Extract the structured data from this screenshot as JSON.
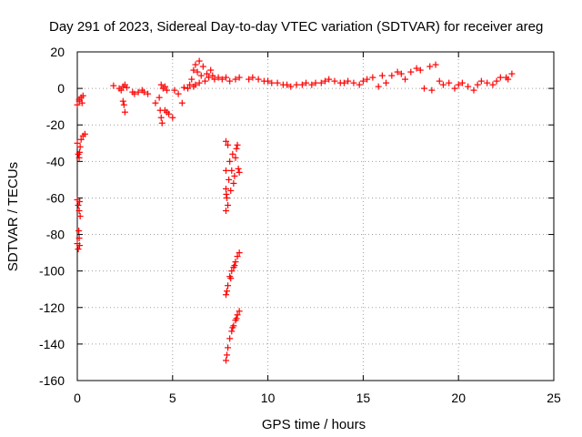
{
  "chart_data": {
    "type": "scatter",
    "title": "Day 291 of 2023, Sidereal Day-to-day VTEC variation (SDTVAR) for receiver areg",
    "xlabel": "GPS time / hours",
    "ylabel": "SDTVAR / TECUs",
    "xlim": [
      0,
      25
    ],
    "ylim": [
      -160,
      20
    ],
    "xticks": [
      "0",
      "5",
      "10",
      "15",
      "20",
      "25"
    ],
    "yticks": [
      "20",
      "0",
      "-20",
      "-40",
      "-60",
      "-80",
      "-100",
      "-120",
      "-140",
      "-160"
    ],
    "grid": true,
    "marker": "+",
    "color": "#ff0000",
    "series": [
      {
        "name": "SDTVAR",
        "points": [
          [
            0.0,
            -9
          ],
          [
            0.1,
            -7
          ],
          [
            0.2,
            -5
          ],
          [
            0.25,
            -8
          ],
          [
            0.3,
            -4
          ],
          [
            0.1,
            -6
          ],
          [
            0.0,
            -30
          ],
          [
            0.05,
            -36
          ],
          [
            0.1,
            -38
          ],
          [
            0.15,
            -32
          ],
          [
            0.2,
            -28
          ],
          [
            0.3,
            -26
          ],
          [
            0.4,
            -25
          ],
          [
            0.12,
            -35
          ],
          [
            0.0,
            -61
          ],
          [
            0.05,
            -64
          ],
          [
            0.1,
            -67
          ],
          [
            0.15,
            -70
          ],
          [
            0.12,
            -62
          ],
          [
            0.0,
            -85
          ],
          [
            0.05,
            -88
          ],
          [
            0.1,
            -82
          ],
          [
            0.08,
            -78
          ],
          [
            0.12,
            -86
          ],
          [
            1.9,
            1.5
          ],
          [
            2.2,
            0
          ],
          [
            2.3,
            -1
          ],
          [
            2.4,
            1
          ],
          [
            2.5,
            2
          ],
          [
            2.6,
            0.5
          ],
          [
            2.4,
            -7
          ],
          [
            2.45,
            -9
          ],
          [
            2.5,
            -13
          ],
          [
            2.9,
            -2
          ],
          [
            3.0,
            -3
          ],
          [
            3.2,
            -2
          ],
          [
            3.4,
            -1
          ],
          [
            3.5,
            -2
          ],
          [
            3.7,
            -3
          ],
          [
            4.1,
            -8
          ],
          [
            4.3,
            -5
          ],
          [
            4.35,
            -12
          ],
          [
            4.4,
            -16
          ],
          [
            4.45,
            -19
          ],
          [
            4.5,
            0
          ],
          [
            4.4,
            2
          ],
          [
            4.6,
            1
          ],
          [
            4.7,
            -1
          ],
          [
            4.6,
            -12
          ],
          [
            4.7,
            -13
          ],
          [
            4.8,
            -14
          ],
          [
            5.0,
            -16
          ],
          [
            5.1,
            -1
          ],
          [
            5.3,
            -3
          ],
          [
            5.5,
            -8
          ],
          [
            5.6,
            0.5
          ],
          [
            5.8,
            0
          ],
          [
            5.9,
            2
          ],
          [
            6.0,
            5
          ],
          [
            6.1,
            10
          ],
          [
            6.2,
            13
          ],
          [
            6.3,
            9
          ],
          [
            6.4,
            15
          ],
          [
            6.5,
            7
          ],
          [
            6.6,
            12
          ],
          [
            6.7,
            4
          ],
          [
            6.8,
            8
          ],
          [
            6.9,
            6
          ],
          [
            7.0,
            10
          ],
          [
            7.1,
            7
          ],
          [
            7.2,
            5
          ],
          [
            7.4,
            6
          ],
          [
            7.6,
            5
          ],
          [
            7.8,
            6
          ],
          [
            8.0,
            4
          ],
          [
            8.3,
            5
          ],
          [
            6.2,
            2
          ],
          [
            6.4,
            3
          ],
          [
            6.1,
            1
          ],
          [
            7.8,
            -29
          ],
          [
            7.9,
            -31
          ],
          [
            7.8,
            -45
          ],
          [
            7.8,
            -55
          ],
          [
            7.85,
            -60
          ],
          [
            7.9,
            -64
          ],
          [
            7.95,
            -50
          ],
          [
            8.0,
            -40
          ],
          [
            8.1,
            -45
          ],
          [
            8.2,
            -52
          ],
          [
            8.25,
            -48
          ],
          [
            8.3,
            -38
          ],
          [
            8.35,
            -33
          ],
          [
            8.4,
            -31
          ],
          [
            8.45,
            -44
          ],
          [
            8.5,
            -46
          ],
          [
            7.8,
            -67
          ],
          [
            7.82,
            -58
          ],
          [
            8.05,
            -56
          ],
          [
            8.15,
            -36
          ],
          [
            7.8,
            -113
          ],
          [
            7.9,
            -108
          ],
          [
            8.0,
            -103
          ],
          [
            8.1,
            -100
          ],
          [
            8.2,
            -98
          ],
          [
            8.3,
            -95
          ],
          [
            8.4,
            -92
          ],
          [
            8.5,
            -90
          ],
          [
            7.85,
            -111
          ],
          [
            8.05,
            -104
          ],
          [
            8.25,
            -97
          ],
          [
            7.8,
            -149
          ],
          [
            7.9,
            -142
          ],
          [
            8.0,
            -137
          ],
          [
            8.1,
            -133
          ],
          [
            8.2,
            -130
          ],
          [
            8.3,
            -127
          ],
          [
            8.4,
            -124
          ],
          [
            8.5,
            -122
          ],
          [
            7.85,
            -146
          ],
          [
            8.15,
            -131
          ],
          [
            8.35,
            -126
          ],
          [
            8.5,
            6
          ],
          [
            9.0,
            5
          ],
          [
            9.5,
            5
          ],
          [
            10.0,
            4
          ],
          [
            10.5,
            3
          ],
          [
            11.0,
            2
          ],
          [
            11.5,
            2
          ],
          [
            12.0,
            3
          ],
          [
            12.5,
            3
          ],
          [
            13.0,
            4
          ],
          [
            13.5,
            4
          ],
          [
            14.0,
            3
          ],
          [
            14.5,
            3
          ],
          [
            15.0,
            4
          ],
          [
            15.5,
            6
          ],
          [
            16.0,
            7
          ],
          [
            16.5,
            7
          ],
          [
            17.0,
            8
          ],
          [
            17.5,
            9
          ],
          [
            18.0,
            10
          ],
          [
            18.5,
            12
          ],
          [
            18.8,
            13
          ],
          [
            19.0,
            4
          ],
          [
            19.5,
            3
          ],
          [
            20.0,
            2
          ],
          [
            20.5,
            1
          ],
          [
            21.0,
            2
          ],
          [
            21.5,
            3
          ],
          [
            22.0,
            4
          ],
          [
            22.5,
            6
          ],
          [
            22.8,
            8
          ],
          [
            9.2,
            6
          ],
          [
            9.8,
            4
          ],
          [
            10.2,
            3
          ],
          [
            10.8,
            2
          ],
          [
            11.2,
            1
          ],
          [
            11.8,
            2
          ],
          [
            12.3,
            2
          ],
          [
            12.8,
            3
          ],
          [
            13.2,
            5
          ],
          [
            13.8,
            3
          ],
          [
            14.2,
            4
          ],
          [
            14.8,
            2
          ],
          [
            15.2,
            5
          ],
          [
            15.8,
            1
          ],
          [
            16.2,
            3
          ],
          [
            16.8,
            9
          ],
          [
            17.2,
            5
          ],
          [
            17.8,
            11
          ],
          [
            18.2,
            0
          ],
          [
            18.6,
            -1
          ],
          [
            19.2,
            2
          ],
          [
            19.8,
            0
          ],
          [
            20.2,
            3
          ],
          [
            20.8,
            -1
          ],
          [
            21.2,
            4
          ],
          [
            21.8,
            2
          ],
          [
            22.2,
            6
          ],
          [
            22.6,
            5
          ]
        ]
      }
    ]
  }
}
